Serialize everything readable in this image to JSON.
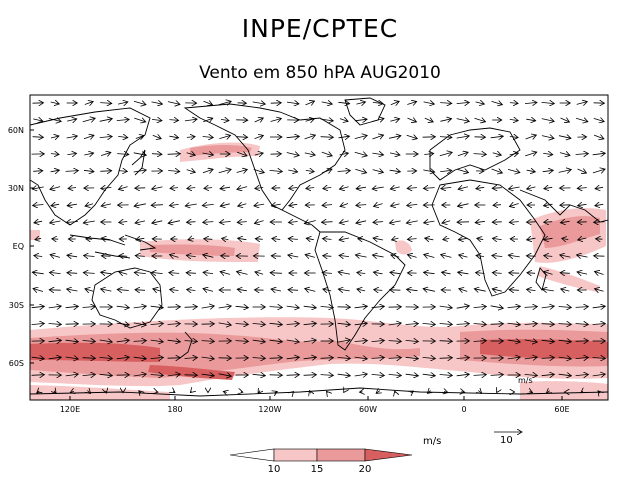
{
  "title": "INPE/CPTEC",
  "subtitle": "Vento em 850 hPA AUG2010",
  "latitude_labels": [
    "60N",
    "30N",
    "EQ",
    "30S",
    "60S"
  ],
  "longitude_labels": [
    "120E",
    "180",
    "120W",
    "60W",
    "0",
    "60E"
  ],
  "legend": {
    "unit": "m/s",
    "values": [
      "10",
      "15",
      "20"
    ],
    "colors": [
      "#ffffff",
      "#f7c6c6",
      "#ea9a9a",
      "#d85f5f"
    ]
  },
  "reference_vector": {
    "value": "10"
  },
  "inner_unit_label": "m/s"
}
